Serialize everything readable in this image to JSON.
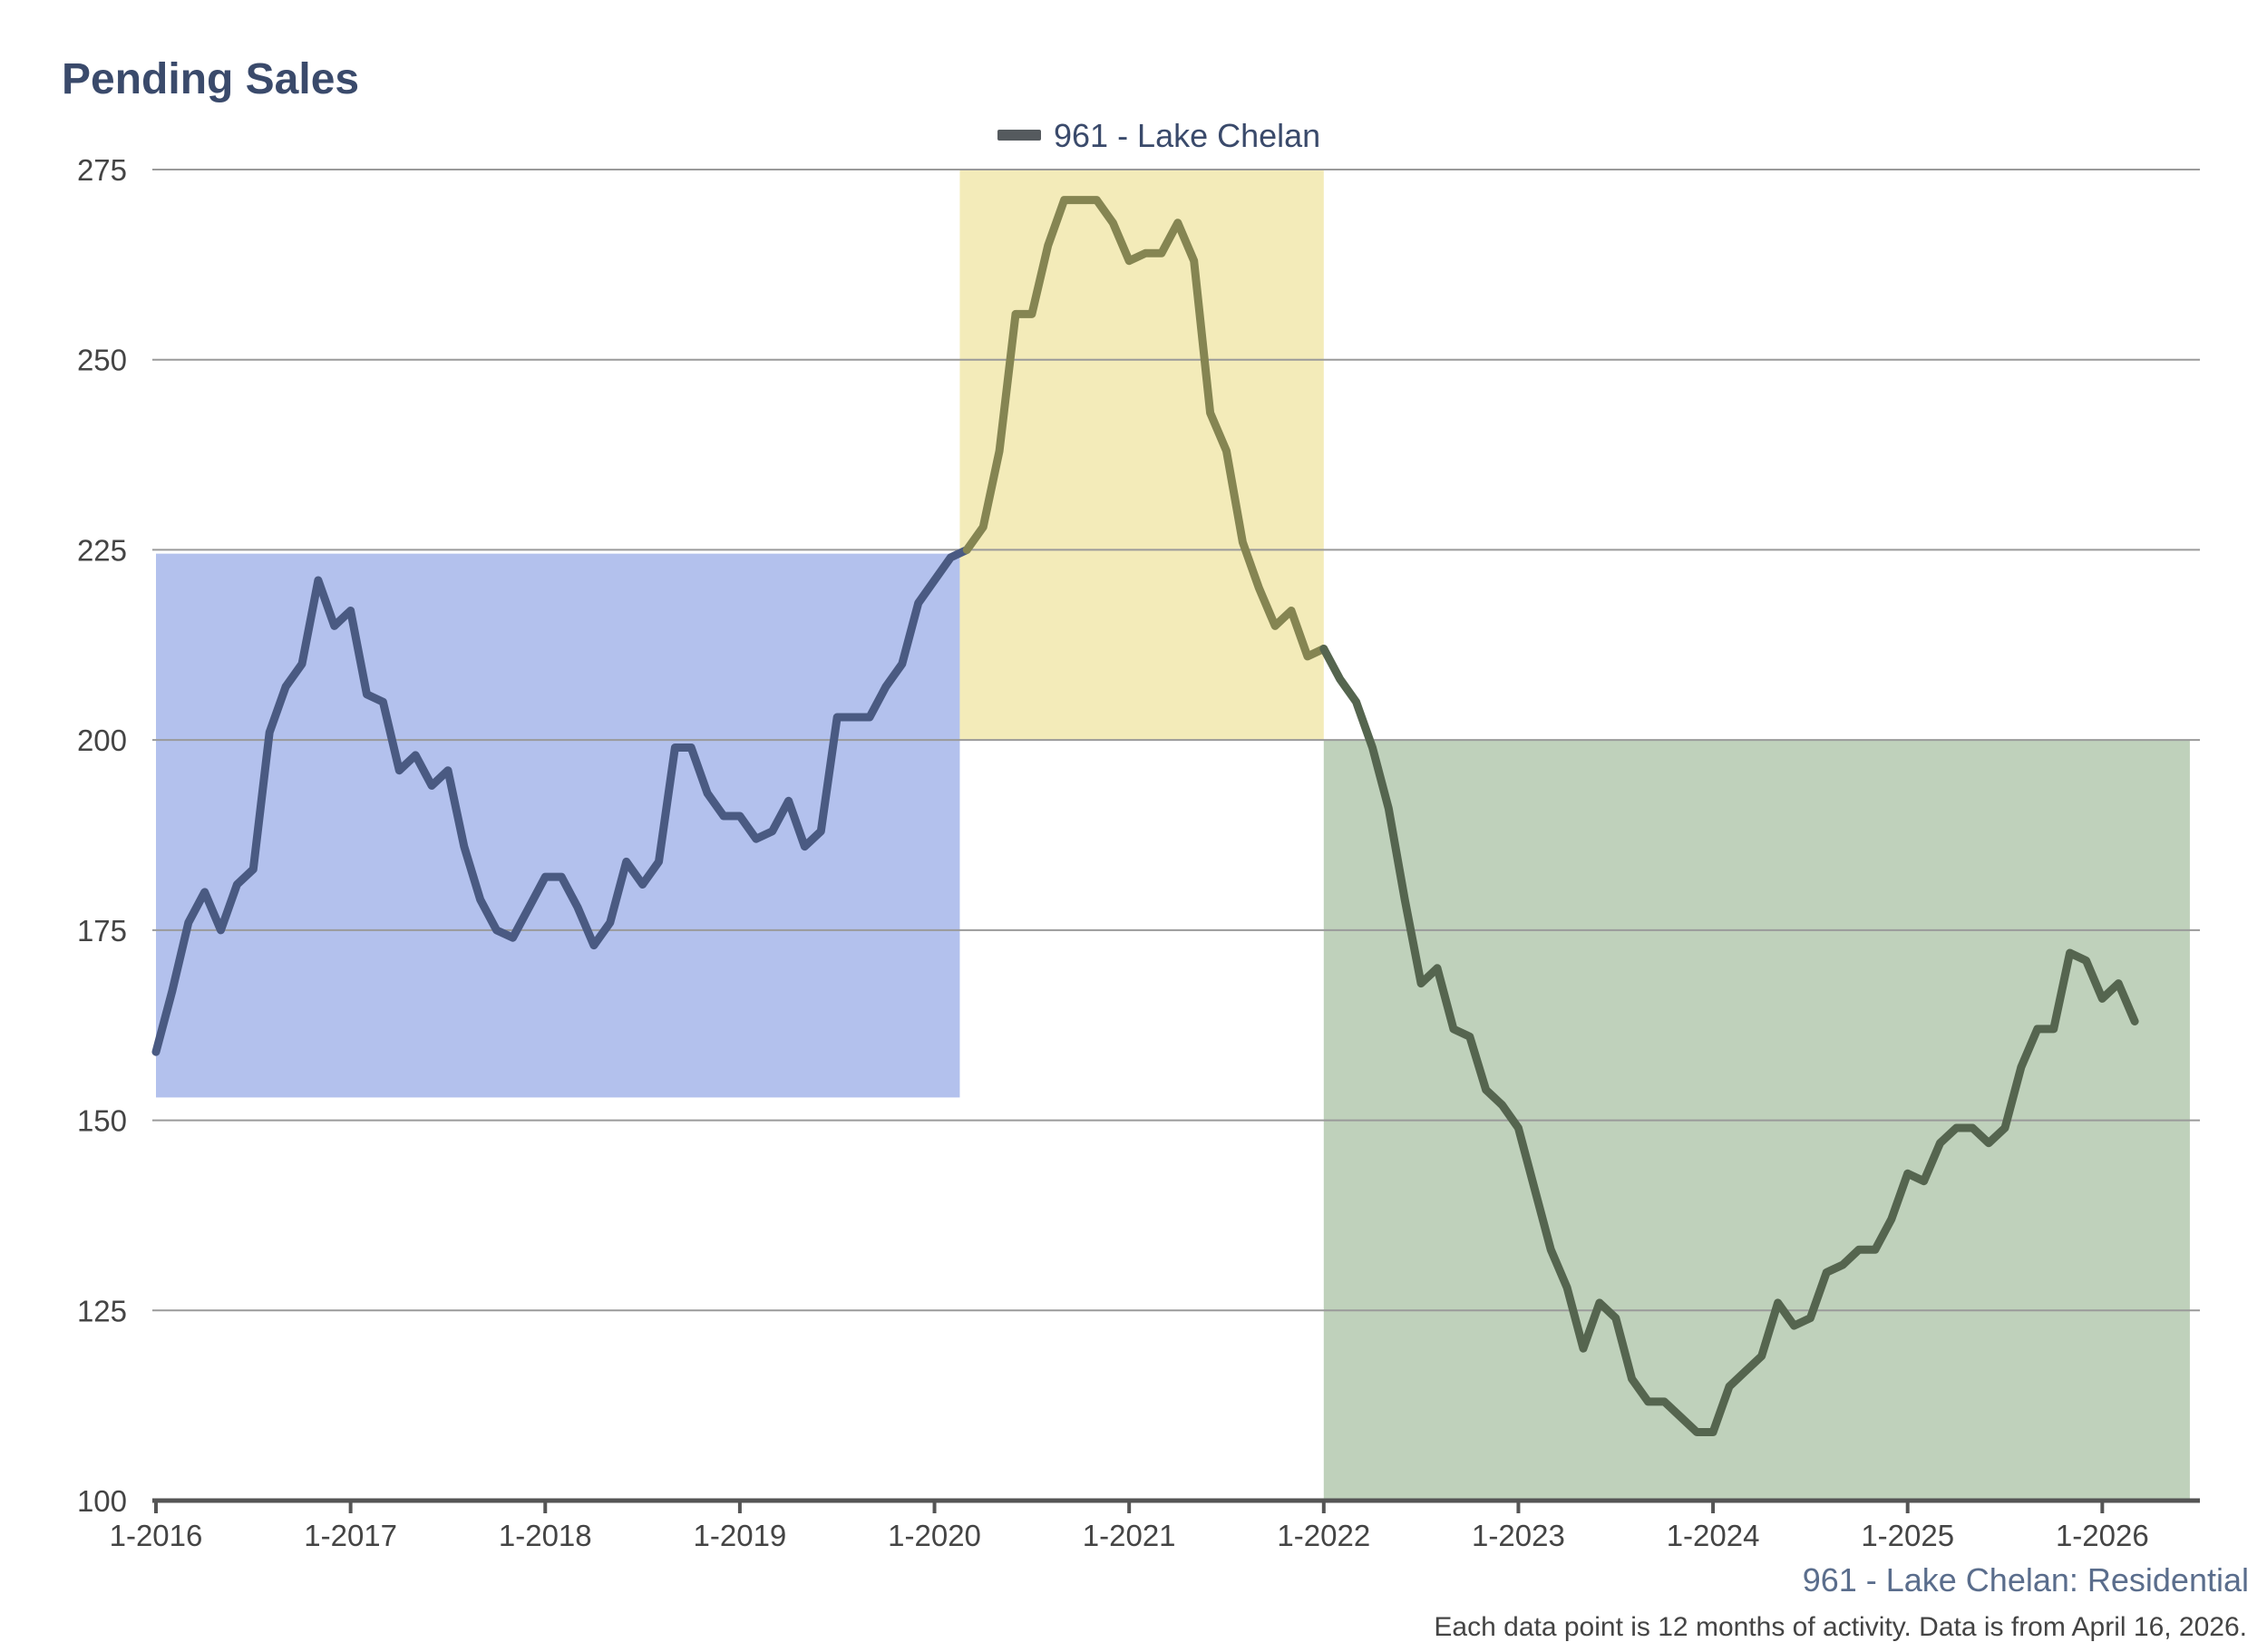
{
  "chart_data": {
    "type": "line",
    "title": "Pending Sales",
    "subtitle": "961 - Lake Chelan: Residential",
    "footnote": "Each data point is 12 months of activity. Data is from April 16, 2026.",
    "legend": {
      "label": "961 - Lake Chelan",
      "position": "top-center",
      "color": "#555a5e"
    },
    "xlabel": "",
    "ylabel": "",
    "ylim": [
      100,
      275
    ],
    "yticks": [
      100,
      125,
      150,
      175,
      200,
      225,
      250,
      275
    ],
    "xlim": [
      2016.0,
      2026.25
    ],
    "xticks": [
      {
        "value": 2016,
        "label": "1-2016"
      },
      {
        "value": 2017,
        "label": "1-2017"
      },
      {
        "value": 2018,
        "label": "1-2018"
      },
      {
        "value": 2019,
        "label": "1-2019"
      },
      {
        "value": 2020,
        "label": "1-2020"
      },
      {
        "value": 2021,
        "label": "1-2021"
      },
      {
        "value": 2022,
        "label": "1-2022"
      },
      {
        "value": 2023,
        "label": "1-2023"
      },
      {
        "value": 2024,
        "label": "1-2024"
      },
      {
        "value": 2025,
        "label": "1-2025"
      },
      {
        "value": 2026,
        "label": "1-2026"
      }
    ],
    "grid": true,
    "regions": [
      {
        "name": "blue-region",
        "x0": 2016.0,
        "x1": 2020.13,
        "y0": 153,
        "y1": 224.5,
        "fill": "#b3c1ed",
        "line": "#4a5a82"
      },
      {
        "name": "yellow-region",
        "x0": 2020.13,
        "x1": 2022.0,
        "y0": 200,
        "y1": 275,
        "fill": "#f3ebb9",
        "line": "#858552"
      },
      {
        "name": "green-region",
        "x0": 2022.0,
        "x1": 2026.45,
        "y0": 100,
        "y1": 200,
        "fill": "#bfd1bb",
        "line": "#55654f"
      }
    ],
    "series": [
      {
        "name": "961 - Lake Chelan",
        "start_year": 2016,
        "start_month": 1,
        "values": [
          159,
          167,
          176,
          180,
          175,
          181,
          183,
          201,
          207,
          210,
          221,
          215,
          217,
          206,
          205,
          196,
          198,
          194,
          196,
          186,
          179,
          175,
          174,
          178,
          182,
          182,
          178,
          173,
          176,
          184,
          181,
          184,
          199,
          199,
          193,
          190,
          190,
          187,
          188,
          192,
          186,
          188,
          203,
          203,
          203,
          207,
          210,
          218,
          221,
          224,
          225,
          228,
          238,
          256,
          256,
          265,
          271,
          271,
          271,
          268,
          263,
          264,
          264,
          268,
          263,
          243,
          238,
          226,
          220,
          215,
          217,
          211,
          212,
          208,
          205,
          199,
          191,
          179,
          168,
          170,
          162,
          161,
          154,
          152,
          149,
          141,
          133,
          128,
          120,
          126,
          124,
          116,
          113,
          113,
          111,
          109,
          109,
          115,
          117,
          119,
          126,
          123,
          124,
          130,
          131,
          133,
          133,
          137,
          143,
          142,
          147,
          149,
          149,
          147,
          149,
          157,
          162,
          162,
          172,
          171,
          166,
          168,
          163
        ]
      }
    ]
  }
}
